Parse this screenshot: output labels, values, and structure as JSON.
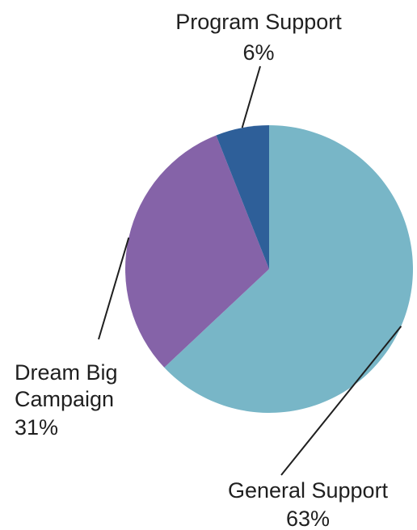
{
  "chart_data": {
    "type": "pie",
    "slices": [
      {
        "label": "General Support",
        "value": 63,
        "value_label": "63%",
        "color": "#78b6c7"
      },
      {
        "label": "Dream Big Campaign",
        "value": 31,
        "value_label": "31%",
        "color": "#8563a8"
      },
      {
        "label": "Program Support",
        "value": 6,
        "value_label": "6%",
        "color": "#2e5f99"
      }
    ],
    "start": "12 o'clock",
    "direction": "clockwise",
    "legend": "none",
    "data_labels": "outside with leader lines"
  }
}
